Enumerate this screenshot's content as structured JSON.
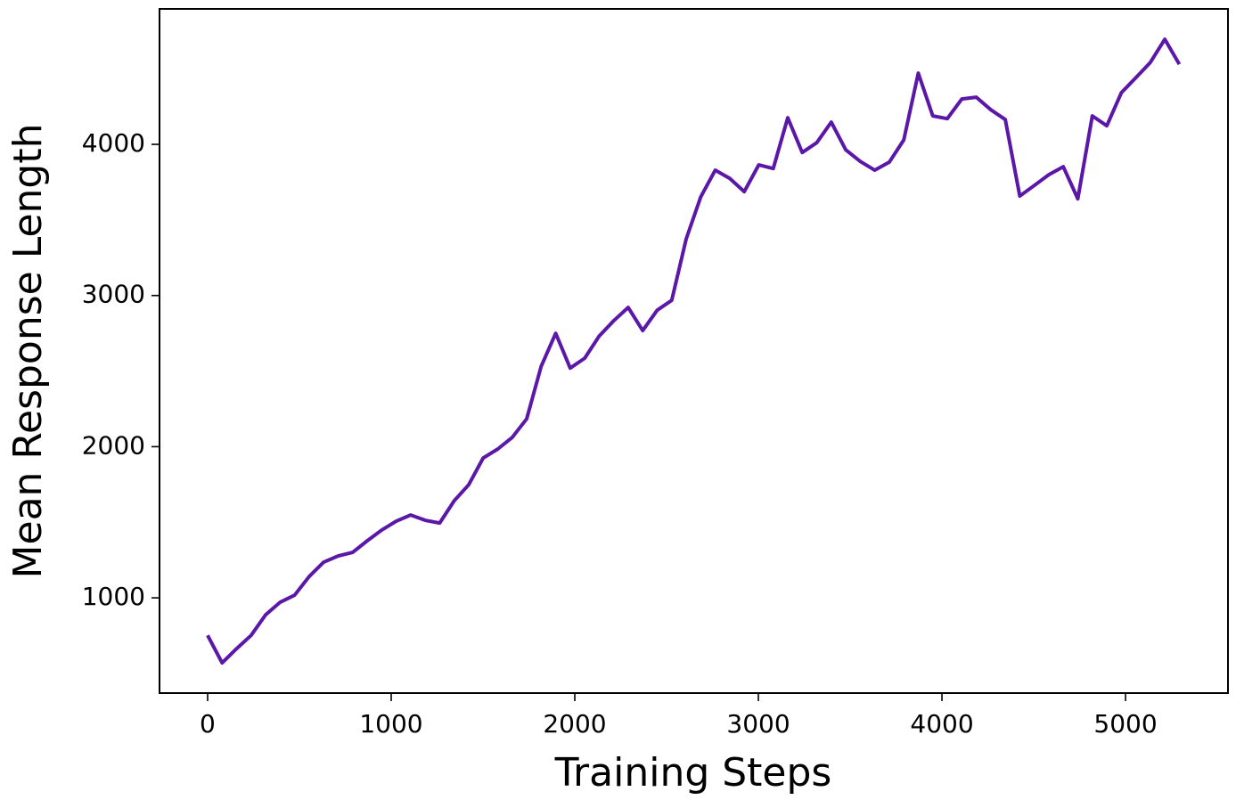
{
  "chart_data": {
    "type": "line",
    "xlabel": "Training Steps",
    "ylabel": "Mean Response Length",
    "x": [
      0,
      79,
      158,
      237,
      316,
      395,
      474,
      553,
      632,
      711,
      790,
      869,
      948,
      1027,
      1106,
      1185,
      1264,
      1343,
      1422,
      1501,
      1580,
      1659,
      1738,
      1817,
      1896,
      1975,
      2054,
      2133,
      2212,
      2291,
      2370,
      2449,
      2528,
      2607,
      2686,
      2765,
      2844,
      2923,
      3002,
      3081,
      3160,
      3239,
      3318,
      3397,
      3476,
      3555,
      3634,
      3713,
      3792,
      3871,
      3950,
      4029,
      4108,
      4187,
      4266,
      4345,
      4424,
      4503,
      4582,
      4661,
      4740,
      4819,
      4898,
      4977,
      5056,
      5135,
      5214,
      5293
    ],
    "series": [
      {
        "color": "#5b17a8",
        "values": [
          752,
          570,
          664,
          752,
          888,
          971,
          1018,
          1141,
          1236,
          1277,
          1301,
          1377,
          1448,
          1507,
          1548,
          1513,
          1495,
          1642,
          1748,
          1925,
          1984,
          2061,
          2184,
          2532,
          2750,
          2520,
          2585,
          2732,
          2833,
          2921,
          2768,
          2903,
          2968,
          3375,
          3652,
          3829,
          3775,
          3687,
          3864,
          3840,
          4176,
          3946,
          4011,
          4147,
          3964,
          3887,
          3829,
          3882,
          4029,
          4471,
          4188,
          4170,
          4300,
          4312,
          4229,
          4164,
          3658,
          3728,
          3799,
          3852,
          3640,
          4188,
          4123,
          4341,
          4441,
          4542,
          4695,
          4530
        ]
      }
    ],
    "xlim": [
      -262,
      5558
    ],
    "xticks": [
      0,
      1000,
      2000,
      3000,
      4000,
      5000
    ],
    "ylim": [
      370,
      4896
    ],
    "yticks": [
      1000,
      2000,
      3000,
      4000
    ]
  }
}
